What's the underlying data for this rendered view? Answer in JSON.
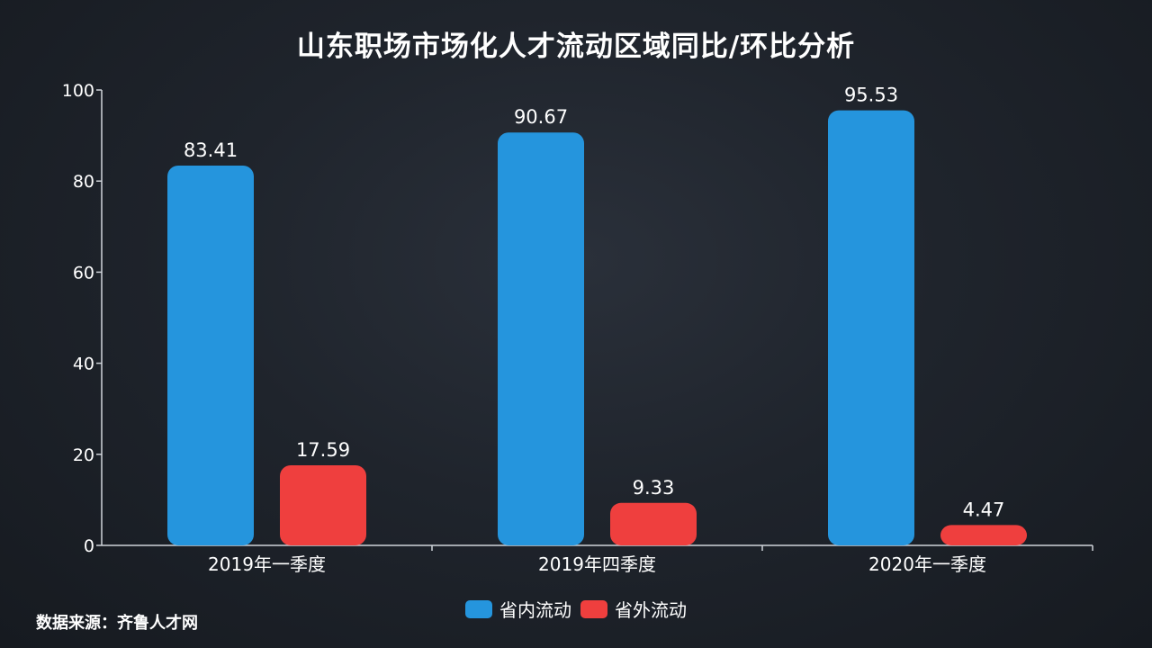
{
  "header": {
    "title": "山东职场市场化人才流动区域同比/环比分析"
  },
  "footer": {
    "source": "数据来源：齐鲁人才网"
  },
  "chart_data": {
    "type": "bar",
    "title": "山东职场市场化人才流动区域同比/环比分析",
    "categories": [
      "2019年一季度",
      "2019年四季度",
      "2020年一季度"
    ],
    "series": [
      {
        "name": "省内流动",
        "values": [
          83.41,
          90.67,
          95.53
        ],
        "color": "#2595dd"
      },
      {
        "name": "省外流动",
        "values": [
          17.59,
          9.33,
          4.47
        ],
        "color": "#ef3f3e"
      }
    ],
    "yticks": [
      0,
      20,
      40,
      60,
      80,
      100
    ],
    "ylim": [
      0,
      100
    ],
    "xlabel": "",
    "ylabel": "",
    "grid": false,
    "legend_position": "bottom-center"
  }
}
